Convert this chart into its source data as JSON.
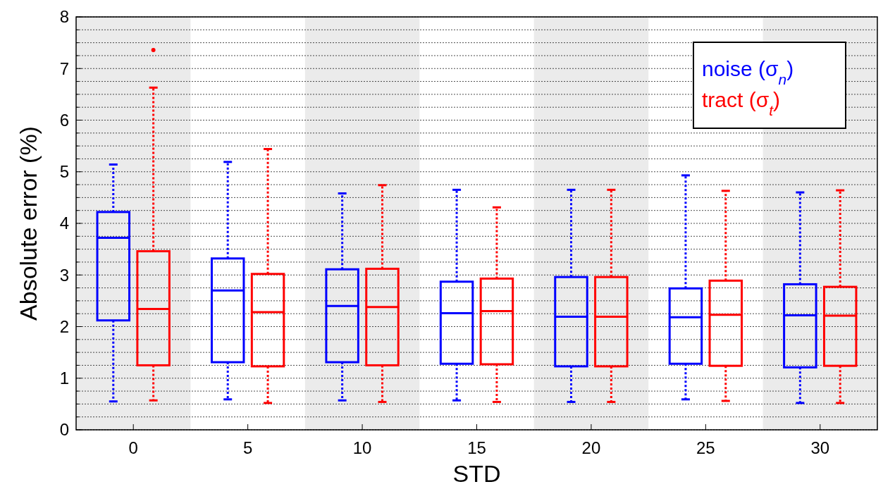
{
  "chart_data": {
    "type": "box",
    "xlabel": "STD",
    "ylabel": "Absolute error (%)",
    "categories": [
      "0",
      "5",
      "10",
      "15",
      "20",
      "25",
      "30"
    ],
    "ylim": [
      0,
      8
    ],
    "yticks": [
      0,
      {
        "value": 0.25,
        "label": null
      },
      {
        "value": 0.5,
        "label": null
      },
      {
        "value": 0.75,
        "label": null
      },
      1,
      {
        "value": 1.25,
        "label": null
      },
      {
        "value": 1.5,
        "label": null
      },
      {
        "value": 1.75,
        "label": null
      },
      2,
      {
        "value": 2.25,
        "label": null
      },
      {
        "value": 2.5,
        "label": null
      },
      {
        "value": 2.75,
        "label": null
      },
      3,
      {
        "value": 3.25,
        "label": null
      },
      {
        "value": 3.5,
        "label": null
      },
      {
        "value": 3.75,
        "label": null
      },
      4,
      {
        "value": 4.25,
        "label": null
      },
      {
        "value": 4.5,
        "label": null
      },
      {
        "value": 4.75,
        "label": null
      },
      5,
      {
        "value": 5.25,
        "label": null
      },
      {
        "value": 5.5,
        "label": null
      },
      {
        "value": 5.75,
        "label": null
      },
      6,
      {
        "value": 6.25,
        "label": null
      },
      {
        "value": 6.5,
        "label": null
      },
      {
        "value": 6.75,
        "label": null
      },
      7,
      {
        "value": 7.25,
        "label": null
      },
      {
        "value": 7.5,
        "label": null
      },
      {
        "value": 7.75,
        "label": null
      },
      8
    ],
    "grid": "y",
    "legend": "top right",
    "line_style": "dotted",
    "bands": [
      {
        "axis": "x",
        "from": "0",
        "to": "0",
        "color": "#ebebeb"
      },
      {
        "axis": "x",
        "from": "10",
        "to": "10",
        "color": "#ebebeb"
      },
      {
        "axis": "x",
        "from": "20",
        "to": "20",
        "color": "#ebebeb"
      },
      {
        "axis": "x",
        "from": "30",
        "to": "30",
        "color": "#ebebeb"
      }
    ],
    "series": [
      {
        "name": "noise (σ$_{n}$)",
        "color": "#0000ff",
        "boxes": [
          {
            "low": 0.55,
            "q1": 2.12,
            "median": 3.72,
            "q3": 4.22,
            "high": 5.14
          },
          {
            "low": 0.59,
            "q1": 1.31,
            "median": 2.7,
            "q3": 3.32,
            "high": 5.19
          },
          {
            "low": 0.57,
            "q1": 1.31,
            "median": 2.4,
            "q3": 3.11,
            "high": 4.58
          },
          {
            "low": 0.57,
            "q1": 1.28,
            "median": 2.26,
            "q3": 2.87,
            "high": 4.65
          },
          {
            "low": 0.54,
            "q1": 1.23,
            "median": 2.19,
            "q3": 2.96,
            "high": 4.65
          },
          {
            "low": 0.59,
            "q1": 1.28,
            "median": 2.18,
            "q3": 2.74,
            "high": 4.93
          },
          {
            "low": 0.52,
            "q1": 1.21,
            "median": 2.22,
            "q3": 2.82,
            "high": 4.6
          }
        ]
      },
      {
        "name": "tract (σ$_{t}$)",
        "color": "#ff0000",
        "boxes": [
          {
            "low": 0.57,
            "q1": 1.25,
            "median": 2.34,
            "q3": 3.46,
            "high": 6.63,
            "outliers": [
              7.36
            ]
          },
          {
            "low": 0.52,
            "q1": 1.23,
            "median": 2.28,
            "q3": 3.02,
            "high": 5.44
          },
          {
            "low": 0.54,
            "q1": 1.25,
            "median": 2.38,
            "q3": 3.12,
            "high": 4.74
          },
          {
            "low": 0.54,
            "q1": 1.27,
            "median": 2.3,
            "q3": 2.93,
            "high": 4.31
          },
          {
            "low": 0.54,
            "q1": 1.23,
            "median": 2.19,
            "q3": 2.96,
            "high": 4.65
          },
          {
            "low": 0.56,
            "q1": 1.24,
            "median": 2.23,
            "q3": 2.89,
            "high": 4.63
          },
          {
            "low": 0.52,
            "q1": 1.24,
            "median": 2.21,
            "q3": 2.77,
            "high": 4.64
          }
        ]
      }
    ]
  }
}
